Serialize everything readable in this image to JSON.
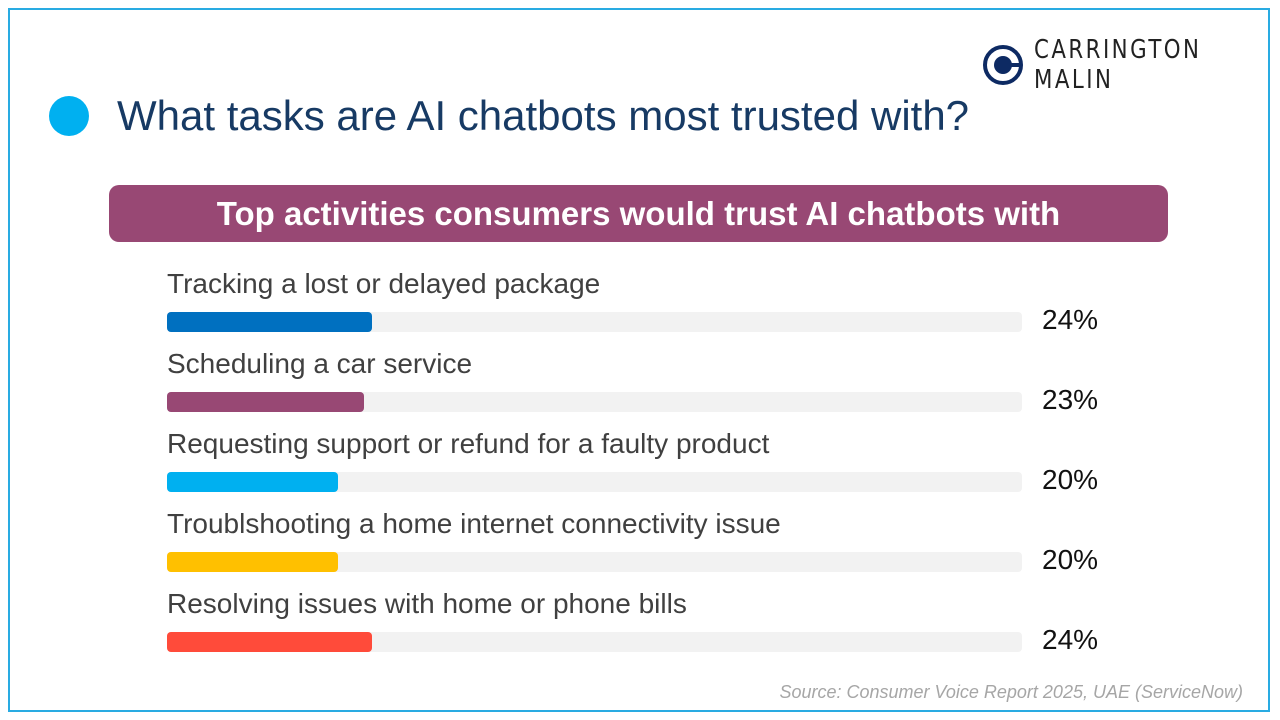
{
  "logo": {
    "text": "Carrington Malin"
  },
  "title": "What tasks are AI chatbots most trusted with?",
  "chart_data": {
    "type": "bar",
    "title": "Top activities consumers would trust AI chatbots with",
    "categories": [
      "Tracking a lost or delayed package",
      "Scheduling a car service",
      "Requesting support or refund for a faulty product",
      "Troublshooting a home internet connectivity issue",
      "Resolving issues with home or phone bills"
    ],
    "values": [
      24,
      23,
      20,
      20,
      24
    ],
    "labels": [
      "24%",
      "23%",
      "20%",
      "20%",
      "24%"
    ],
    "colors": [
      "#0070c0",
      "#984874",
      "#00b0f0",
      "#ffc000",
      "#ff4b3a"
    ],
    "xlim": [
      0,
      100
    ],
    "source": "Source: Consumer Voice Report 2025, UAE (ServiceNow)"
  }
}
